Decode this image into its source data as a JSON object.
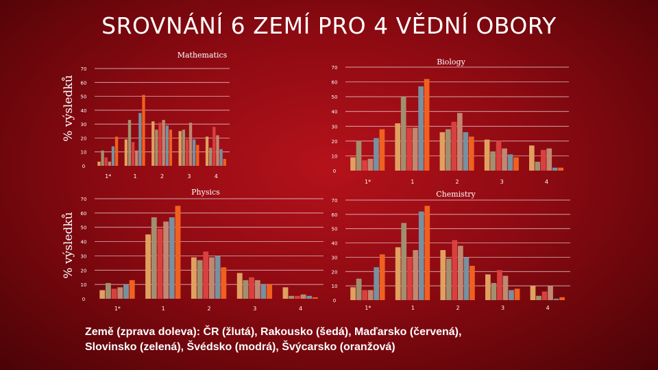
{
  "slide": {
    "title": "SROVNÁNÍ 6 ZEMÍ PRO 4 VĚDNÍ OBORY",
    "ylabel_top": "% výsledků",
    "ylabel_bottom": "% výsledků",
    "legend_note_line1": "Země (zprava doleva): ČR (žlutá), Rakousko (šedá), Maďarsko (červená),",
    "legend_note_line2": "Slovinsko (zelená), Švédsko (modrá), Švýcarsko (oranžová)"
  },
  "colors": {
    "series": [
      "#e0a060",
      "#a09070",
      "#d94040",
      "#c08870",
      "#7890a0",
      "#f06020"
    ],
    "gridline": "#ffffff"
  },
  "chart_data": [
    {
      "type": "bar",
      "title": "Mathematics",
      "categories": [
        "1*",
        "1",
        "2",
        "3",
        "4"
      ],
      "ylim": [
        0,
        70
      ],
      "yticks": [
        0,
        10,
        20,
        30,
        40,
        50,
        60,
        70
      ],
      "series": [
        {
          "values": [
            3,
            19,
            32,
            25,
            21
          ]
        },
        {
          "values": [
            11,
            33,
            26,
            26,
            13
          ]
        },
        {
          "values": [
            6,
            17,
            31,
            19,
            28
          ]
        },
        {
          "values": [
            3,
            11,
            33,
            31,
            22
          ]
        },
        {
          "values": [
            14,
            38,
            29,
            19,
            12
          ]
        },
        {
          "values": [
            21,
            51,
            26,
            15,
            5
          ]
        }
      ]
    },
    {
      "type": "bar",
      "title": "Biology",
      "categories": [
        "1*",
        "1",
        "2",
        "3",
        "4"
      ],
      "ylim": [
        0,
        70
      ],
      "yticks": [
        0,
        10,
        20,
        30,
        40,
        50,
        60,
        70
      ],
      "series": [
        {
          "values": [
            9,
            32,
            26,
            21,
            17
          ]
        },
        {
          "values": [
            20,
            50,
            28,
            13,
            6
          ]
        },
        {
          "values": [
            7,
            29,
            33,
            20,
            14
          ]
        },
        {
          "values": [
            8,
            29,
            39,
            15,
            15
          ]
        },
        {
          "values": [
            22,
            57,
            26,
            11,
            2
          ]
        },
        {
          "values": [
            28,
            62,
            23,
            9,
            2
          ]
        }
      ]
    },
    {
      "type": "bar",
      "title": "Physics",
      "categories": [
        "1*",
        "1",
        "2",
        "3",
        "4"
      ],
      "ylim": [
        0,
        70
      ],
      "yticks": [
        0,
        10,
        20,
        30,
        40,
        50,
        60,
        70
      ],
      "series": [
        {
          "values": [
            6,
            45,
            29,
            18,
            8
          ]
        },
        {
          "values": [
            11,
            57,
            27,
            13,
            2
          ]
        },
        {
          "values": [
            7,
            49,
            33,
            15,
            2
          ]
        },
        {
          "values": [
            8,
            54,
            29,
            13,
            3
          ]
        },
        {
          "values": [
            10,
            57,
            30,
            10,
            2
          ]
        },
        {
          "values": [
            13,
            65,
            22,
            10,
            1
          ]
        }
      ]
    },
    {
      "type": "bar",
      "title": "Chemistry",
      "categories": [
        "1*",
        "1",
        "2",
        "3",
        "4"
      ],
      "ylim": [
        0,
        70
      ],
      "yticks": [
        0,
        10,
        20,
        30,
        40,
        50,
        60,
        70
      ],
      "series": [
        {
          "values": [
            9,
            37,
            35,
            18,
            10
          ]
        },
        {
          "values": [
            15,
            54,
            29,
            12,
            3
          ]
        },
        {
          "values": [
            7,
            30,
            42,
            21,
            6
          ]
        },
        {
          "values": [
            7,
            35,
            38,
            17,
            10
          ]
        },
        {
          "values": [
            23,
            62,
            30,
            7,
            1
          ]
        },
        {
          "values": [
            32,
            66,
            24,
            8,
            2
          ]
        }
      ]
    }
  ]
}
